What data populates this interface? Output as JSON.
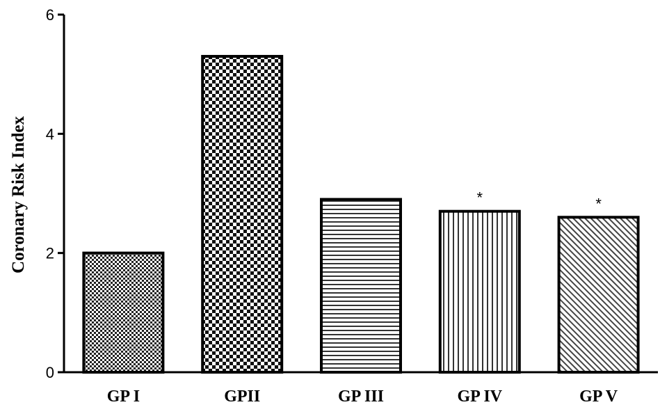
{
  "chart_data": {
    "type": "bar",
    "ylabel": "Coronary Risk Index",
    "xlabel": "",
    "ylim": [
      0,
      6
    ],
    "yticks": [
      0,
      2,
      4,
      6
    ],
    "categories": [
      "GP I",
      "GPII",
      "GP III",
      "GP IV",
      "GP V"
    ],
    "values": [
      2.0,
      5.3,
      2.9,
      2.7,
      2.6
    ],
    "annotations": [
      "",
      "",
      "",
      "*",
      "*"
    ],
    "patterns": [
      "fine-checker",
      "coarse-checker",
      "horizontal-lines",
      "vertical-lines",
      "diagonal-lines"
    ],
    "grid": false,
    "legend": "none"
  }
}
